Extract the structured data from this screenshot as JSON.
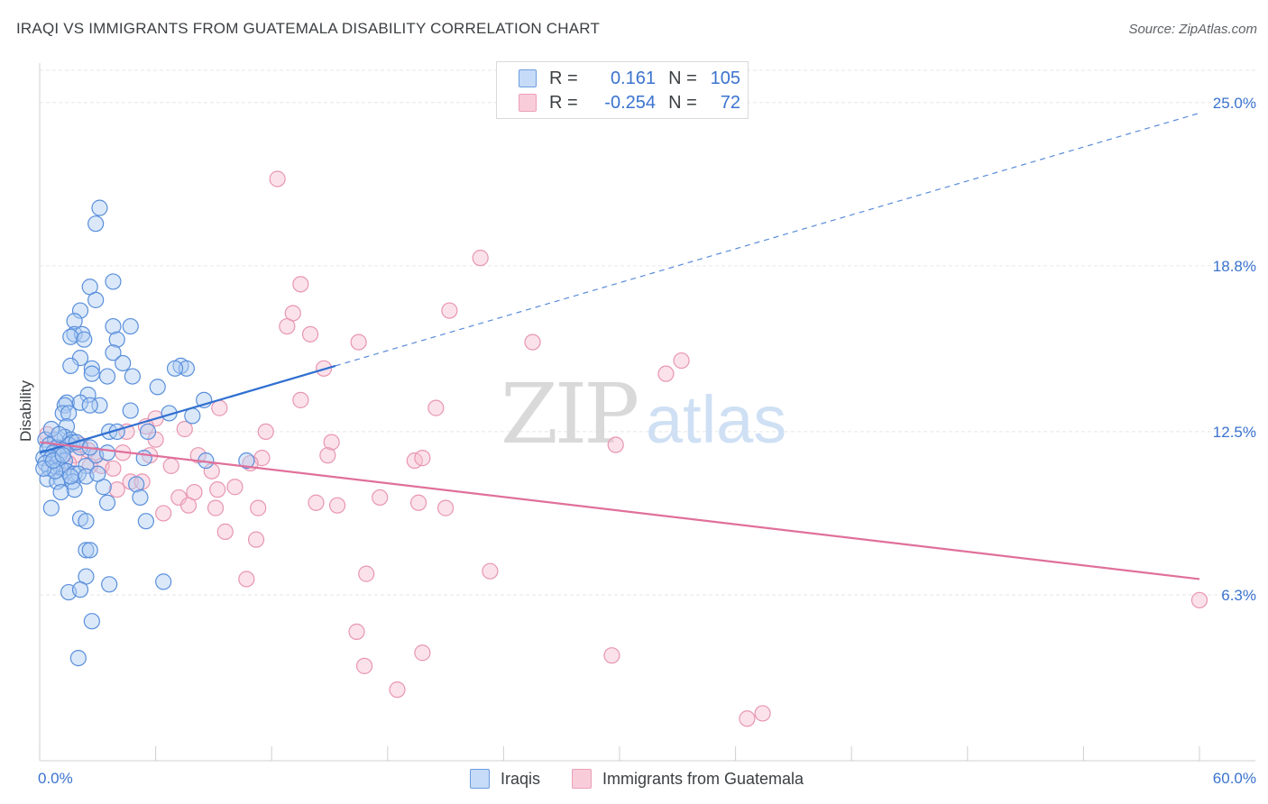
{
  "title": "IRAQI VS IMMIGRANTS FROM GUATEMALA DISABILITY CORRELATION CHART",
  "source": "Source: ZipAtlas.com",
  "watermark": {
    "zip": "ZIP",
    "atlas": "atlas"
  },
  "legend": {
    "rows": [
      {
        "r_label": "R =",
        "r_value": "0.161",
        "n_label": "N =",
        "n_value": "105"
      },
      {
        "r_label": "R =",
        "r_value": "-0.254",
        "n_label": "N =",
        "n_value": "72"
      }
    ]
  },
  "bottom_legend": {
    "series1": "Iraqis",
    "series2": "Immigrants from Guatemala"
  },
  "colors": {
    "blue_fill": "#aecbf2",
    "blue_stroke": "#5a8fdc",
    "blue_line": "#2f6fd1",
    "pink_fill": "#f7bfd0",
    "pink_stroke": "#e896b0",
    "pink_line": "#e0709a",
    "axis_text": "#3a73cf",
    "grid": "#e6e6e6"
  },
  "chart_data": {
    "type": "scatter",
    "title": "IRAQI VS IMMIGRANTS FROM GUATEMALA DISABILITY CORRELATION CHART",
    "xlabel": "",
    "ylabel": "Disability",
    "xlim": [
      0,
      60
    ],
    "ylim": [
      0,
      26.5
    ],
    "x_tick_labels": [
      "0.0%",
      "60.0%"
    ],
    "y_ticks": [
      6.3,
      12.5,
      18.8,
      25.0
    ],
    "y_tick_labels": [
      "6.3%",
      "12.5%",
      "18.8%",
      "25.0%"
    ],
    "grid": true,
    "legend_position": "top-center",
    "series": [
      {
        "name": "Iraqis",
        "R": 0.161,
        "N": 105,
        "trend": {
          "x": [
            0,
            15.3
          ],
          "y": [
            11.7,
            15.0
          ],
          "dashed_extension_to": [
            60,
            24.6
          ]
        },
        "points": [
          [
            3.1,
            21.0
          ],
          [
            2.9,
            20.4
          ],
          [
            3.8,
            18.2
          ],
          [
            2.6,
            18.0
          ],
          [
            2.9,
            17.5
          ],
          [
            2.1,
            17.1
          ],
          [
            1.8,
            16.7
          ],
          [
            3.8,
            16.5
          ],
          [
            4.7,
            16.5
          ],
          [
            1.8,
            16.2
          ],
          [
            2.2,
            16.2
          ],
          [
            1.6,
            16.1
          ],
          [
            2.3,
            16.0
          ],
          [
            4.0,
            16.0
          ],
          [
            3.8,
            15.5
          ],
          [
            2.1,
            15.3
          ],
          [
            4.3,
            15.1
          ],
          [
            1.6,
            15.0
          ],
          [
            2.7,
            14.9
          ],
          [
            7.3,
            15.0
          ],
          [
            7.6,
            14.9
          ],
          [
            7.0,
            14.9
          ],
          [
            2.7,
            14.7
          ],
          [
            3.5,
            14.6
          ],
          [
            4.8,
            14.6
          ],
          [
            6.1,
            14.2
          ],
          [
            2.5,
            13.9
          ],
          [
            8.5,
            13.7
          ],
          [
            1.4,
            13.6
          ],
          [
            1.3,
            13.5
          ],
          [
            2.1,
            13.6
          ],
          [
            3.1,
            13.5
          ],
          [
            2.6,
            13.5
          ],
          [
            4.7,
            13.3
          ],
          [
            6.7,
            13.2
          ],
          [
            7.9,
            13.1
          ],
          [
            1.2,
            13.2
          ],
          [
            1.5,
            13.2
          ],
          [
            1.4,
            12.7
          ],
          [
            3.6,
            12.5
          ],
          [
            4.0,
            12.5
          ],
          [
            5.6,
            12.5
          ],
          [
            1.3,
            12.3
          ],
          [
            1.6,
            12.2
          ],
          [
            0.3,
            12.2
          ],
          [
            0.8,
            12.2
          ],
          [
            1.7,
            12.1
          ],
          [
            1.5,
            12.0
          ],
          [
            0.5,
            12.0
          ],
          [
            0.9,
            11.9
          ],
          [
            2.1,
            11.9
          ],
          [
            1.2,
            11.8
          ],
          [
            0.4,
            11.8
          ],
          [
            0.7,
            11.7
          ],
          [
            1.0,
            11.6
          ],
          [
            2.9,
            11.6
          ],
          [
            3.5,
            11.7
          ],
          [
            0.2,
            11.5
          ],
          [
            0.6,
            11.5
          ],
          [
            1.3,
            11.4
          ],
          [
            5.4,
            11.5
          ],
          [
            8.6,
            11.4
          ],
          [
            10.7,
            11.4
          ],
          [
            0.3,
            11.3
          ],
          [
            0.9,
            11.3
          ],
          [
            2.4,
            11.2
          ],
          [
            1.1,
            11.1
          ],
          [
            0.5,
            11.1
          ],
          [
            1.4,
            11.0
          ],
          [
            1.8,
            10.9
          ],
          [
            2.0,
            10.9
          ],
          [
            2.4,
            10.8
          ],
          [
            0.4,
            10.7
          ],
          [
            1.1,
            10.7
          ],
          [
            0.9,
            10.6
          ],
          [
            1.7,
            10.6
          ],
          [
            5.0,
            10.5
          ],
          [
            3.3,
            10.4
          ],
          [
            1.8,
            10.3
          ],
          [
            1.1,
            10.2
          ],
          [
            5.2,
            10.0
          ],
          [
            3.5,
            9.8
          ],
          [
            0.6,
            9.6
          ],
          [
            2.1,
            9.2
          ],
          [
            2.4,
            9.1
          ],
          [
            5.5,
            9.1
          ],
          [
            2.4,
            8.0
          ],
          [
            2.6,
            8.0
          ],
          [
            2.4,
            7.0
          ],
          [
            3.6,
            6.7
          ],
          [
            6.4,
            6.8
          ],
          [
            1.5,
            6.4
          ],
          [
            2.1,
            6.5
          ],
          [
            2.7,
            5.3
          ],
          [
            2.0,
            3.9
          ],
          [
            0.6,
            12.6
          ],
          [
            1.9,
            12.1
          ],
          [
            2.6,
            11.9
          ],
          [
            0.8,
            11.0
          ],
          [
            1.6,
            10.8
          ],
          [
            0.2,
            11.1
          ],
          [
            1.0,
            12.4
          ],
          [
            3.0,
            10.9
          ],
          [
            0.7,
            11.4
          ],
          [
            1.2,
            11.6
          ]
        ]
      },
      {
        "name": "Immigrants from Guatemala",
        "R": -0.254,
        "N": 72,
        "trend": {
          "x": [
            0,
            60
          ],
          "y": [
            12.1,
            6.9
          ]
        },
        "points": [
          [
            12.3,
            22.1
          ],
          [
            22.8,
            19.1
          ],
          [
            13.5,
            18.1
          ],
          [
            21.2,
            17.1
          ],
          [
            13.1,
            17.0
          ],
          [
            12.8,
            16.5
          ],
          [
            14.0,
            16.2
          ],
          [
            16.5,
            15.9
          ],
          [
            25.5,
            15.9
          ],
          [
            33.2,
            15.2
          ],
          [
            32.4,
            14.7
          ],
          [
            14.7,
            14.9
          ],
          [
            13.5,
            13.7
          ],
          [
            20.5,
            13.4
          ],
          [
            9.3,
            13.4
          ],
          [
            6.0,
            13.0
          ],
          [
            5.5,
            12.7
          ],
          [
            4.5,
            12.5
          ],
          [
            7.5,
            12.6
          ],
          [
            11.7,
            12.5
          ],
          [
            15.1,
            12.1
          ],
          [
            29.8,
            12.0
          ],
          [
            6.0,
            12.2
          ],
          [
            2.1,
            12.0
          ],
          [
            1.1,
            11.9
          ],
          [
            1.8,
            11.6
          ],
          [
            4.3,
            11.7
          ],
          [
            2.5,
            11.8
          ],
          [
            2.9,
            11.6
          ],
          [
            8.2,
            11.6
          ],
          [
            14.9,
            11.6
          ],
          [
            19.4,
            11.4
          ],
          [
            19.8,
            11.5
          ],
          [
            11.5,
            11.5
          ],
          [
            10.9,
            11.3
          ],
          [
            1.5,
            11.3
          ],
          [
            3.2,
            11.2
          ],
          [
            3.8,
            11.1
          ],
          [
            6.8,
            11.2
          ],
          [
            2.6,
            11.2
          ],
          [
            4.7,
            10.6
          ],
          [
            5.3,
            10.6
          ],
          [
            4.0,
            10.3
          ],
          [
            10.1,
            10.4
          ],
          [
            9.2,
            10.3
          ],
          [
            8.0,
            10.2
          ],
          [
            7.2,
            10.0
          ],
          [
            17.6,
            10.0
          ],
          [
            14.3,
            9.8
          ],
          [
            15.4,
            9.7
          ],
          [
            19.6,
            9.8
          ],
          [
            21.0,
            9.6
          ],
          [
            7.7,
            9.7
          ],
          [
            9.1,
            9.6
          ],
          [
            11.3,
            9.6
          ],
          [
            6.4,
            9.4
          ],
          [
            9.6,
            8.7
          ],
          [
            11.2,
            8.4
          ],
          [
            23.3,
            7.2
          ],
          [
            16.9,
            7.1
          ],
          [
            10.7,
            6.9
          ],
          [
            60.0,
            6.1
          ],
          [
            16.4,
            4.9
          ],
          [
            19.8,
            4.1
          ],
          [
            29.6,
            4.0
          ],
          [
            16.8,
            3.6
          ],
          [
            18.5,
            2.7
          ],
          [
            36.6,
            1.6
          ],
          [
            37.4,
            1.8
          ],
          [
            5.7,
            11.6
          ],
          [
            8.9,
            11.0
          ],
          [
            0.4,
            12.4
          ]
        ]
      }
    ]
  }
}
